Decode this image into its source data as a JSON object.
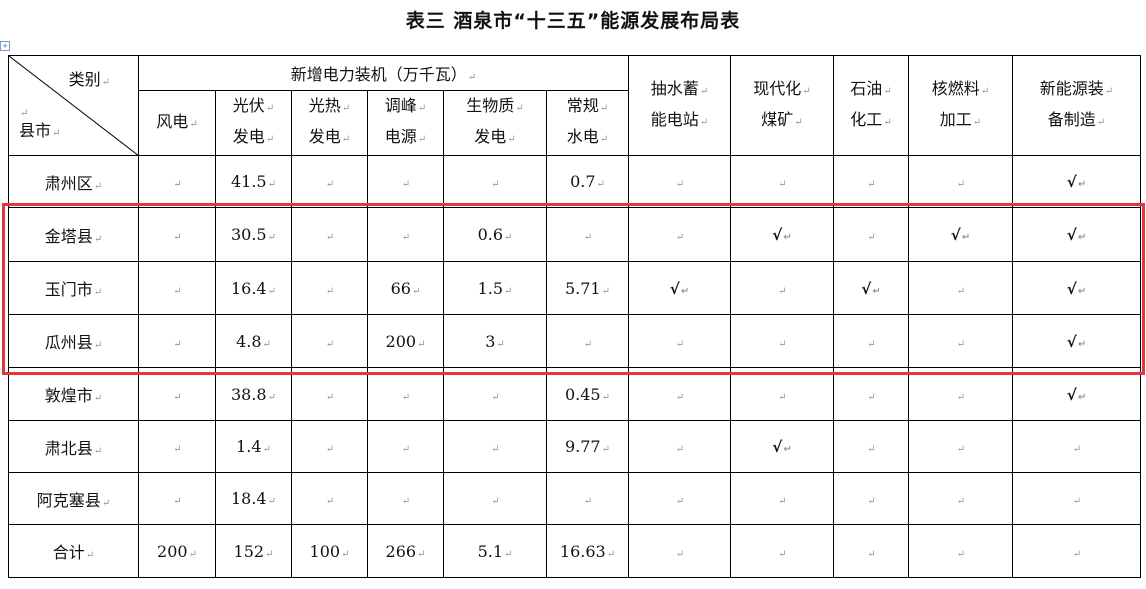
{
  "title": "表三  酒泉市“十三五”能源发展布局表",
  "header": {
    "corner_top": "类别",
    "corner_bottom": "县市",
    "group": "新增电力装机（万千瓦）",
    "sub": [
      [
        "风电",
        ""
      ],
      [
        "光伏",
        "发电"
      ],
      [
        "光热",
        "发电"
      ],
      [
        "调峰",
        "电源"
      ],
      [
        "生物质",
        "发电"
      ],
      [
        "常规",
        "水电"
      ]
    ],
    "others": [
      [
        "抽水蓄",
        "能电站"
      ],
      [
        "现代化",
        "煤矿"
      ],
      [
        "石油",
        "化工"
      ],
      [
        "核燃料",
        "加工"
      ],
      [
        "新能源装",
        "备制造"
      ]
    ]
  },
  "rows": [
    {
      "name": "肃州区",
      "cells": [
        "",
        "41.5",
        "",
        "",
        "",
        "0.7",
        "",
        "",
        "",
        "",
        "√"
      ]
    },
    {
      "name": "金塔县",
      "cells": [
        "",
        "30.5",
        "",
        "",
        "0.6",
        "",
        "",
        "√",
        "",
        "√",
        "√"
      ]
    },
    {
      "name": "玉门市",
      "cells": [
        "",
        "16.4",
        "",
        "66",
        "1.5",
        "5.71",
        "√",
        "",
        "√",
        "",
        "√"
      ]
    },
    {
      "name": "瓜州县",
      "cells": [
        "",
        "4.8",
        "",
        "200",
        "3",
        "",
        "",
        "",
        "",
        "",
        "√"
      ]
    },
    {
      "name": "敦煌市",
      "cells": [
        "",
        "38.8",
        "",
        "",
        "",
        "0.45",
        "",
        "",
        "",
        "",
        "√"
      ]
    },
    {
      "name": "肃北县",
      "cells": [
        "",
        "1.4",
        "",
        "",
        "",
        "9.77",
        "",
        "√",
        "",
        "",
        ""
      ]
    },
    {
      "name": "阿克塞县",
      "cells": [
        "",
        "18.4",
        "",
        "",
        "",
        "",
        "",
        "",
        "",
        "",
        ""
      ]
    },
    {
      "name": "合计",
      "cells": [
        "200",
        "152",
        "100",
        "266",
        "5.1",
        "16.63",
        "",
        "",
        "",
        "",
        ""
      ]
    }
  ],
  "highlight_color": "#e8353b"
}
